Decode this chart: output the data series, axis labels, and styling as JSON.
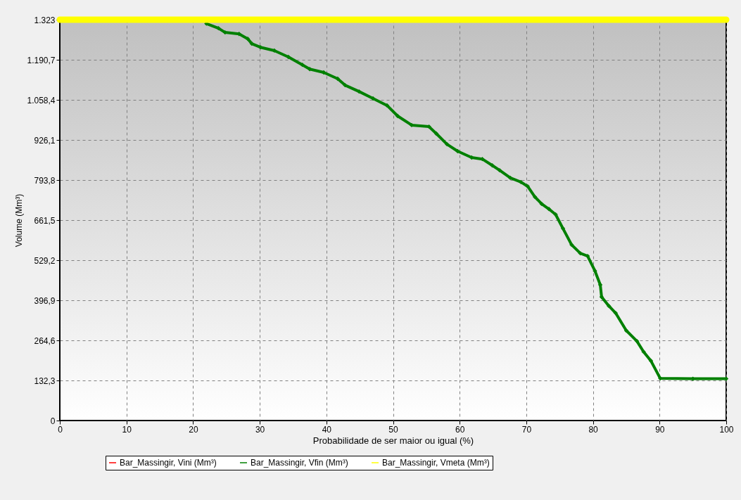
{
  "chart_data": {
    "type": "line",
    "xlabel": "Probabilidade de ser maior ou igual (%)",
    "ylabel": "Volume (Mm³)",
    "xlim": [
      0,
      100
    ],
    "xticks": [
      0,
      10,
      20,
      30,
      40,
      50,
      60,
      70,
      80,
      90,
      100
    ],
    "ylim": [
      0,
      1323
    ],
    "yticks": [
      0,
      {
        "value": 132.3,
        "label": "132,3"
      },
      {
        "value": 264.6,
        "label": "264,6"
      },
      {
        "value": 396.9,
        "label": "396,9"
      },
      {
        "value": 529.2,
        "label": "529,2"
      },
      {
        "value": 661.5,
        "label": "661,5"
      },
      {
        "value": 793.8,
        "label": "793,8"
      },
      {
        "value": 926.1,
        "label": "926,1"
      },
      {
        "value": 1058.4,
        "label": "1.058,4"
      },
      {
        "value": 1190.7,
        "label": "1.190,7"
      },
      {
        "value": 1323,
        "label": "1.323"
      }
    ],
    "grid": true,
    "legend": "bottom",
    "marker": "diamond",
    "line_style": "solid",
    "series": [
      {
        "name": "Bar_Massingir, Vini (Mm³)",
        "color": "#ff0000"
      },
      {
        "name": "Bar_Massingir, Vfin (Mm³)",
        "color": "#008000",
        "x": [
          22,
          23.8,
          24.8,
          26.9,
          28.2,
          28.8,
          30.1,
          32.2,
          34.3,
          36.4,
          37.5,
          39.6,
          41.7,
          42.8,
          44.9,
          47,
          49.1,
          50.7,
          52.8,
          55.4,
          56.5,
          58.1,
          59.7,
          61.8,
          63.4,
          64.9,
          66,
          67.6,
          69.2,
          70.2,
          71.3,
          72.3,
          73.4,
          74.4,
          75.5,
          76.8,
          78.1,
          79.2,
          80.3,
          81.1,
          81.3,
          82.4,
          83.4,
          85,
          86.6,
          87.6,
          88.7,
          90.1,
          95,
          100
        ],
        "values": [
          1310,
          1295,
          1281,
          1276,
          1260,
          1244,
          1232,
          1221,
          1200,
          1174,
          1160,
          1149,
          1128,
          1107,
          1086,
          1063,
          1040,
          1005,
          975,
          970,
          947,
          912,
          889,
          868,
          863,
          842,
          826,
          801,
          787,
          773,
          738,
          715,
          698,
          680,
          634,
          580,
          552,
          543,
          494,
          448,
          408,
          378,
          355,
          297,
          262,
          227,
          197,
          139,
          138,
          138
        ]
      },
      {
        "name": "Bar_Massingir, Vmeta (Mm³)",
        "color": "#ffff00",
        "x": [
          0,
          100
        ],
        "values": [
          1323,
          1323
        ]
      }
    ]
  }
}
